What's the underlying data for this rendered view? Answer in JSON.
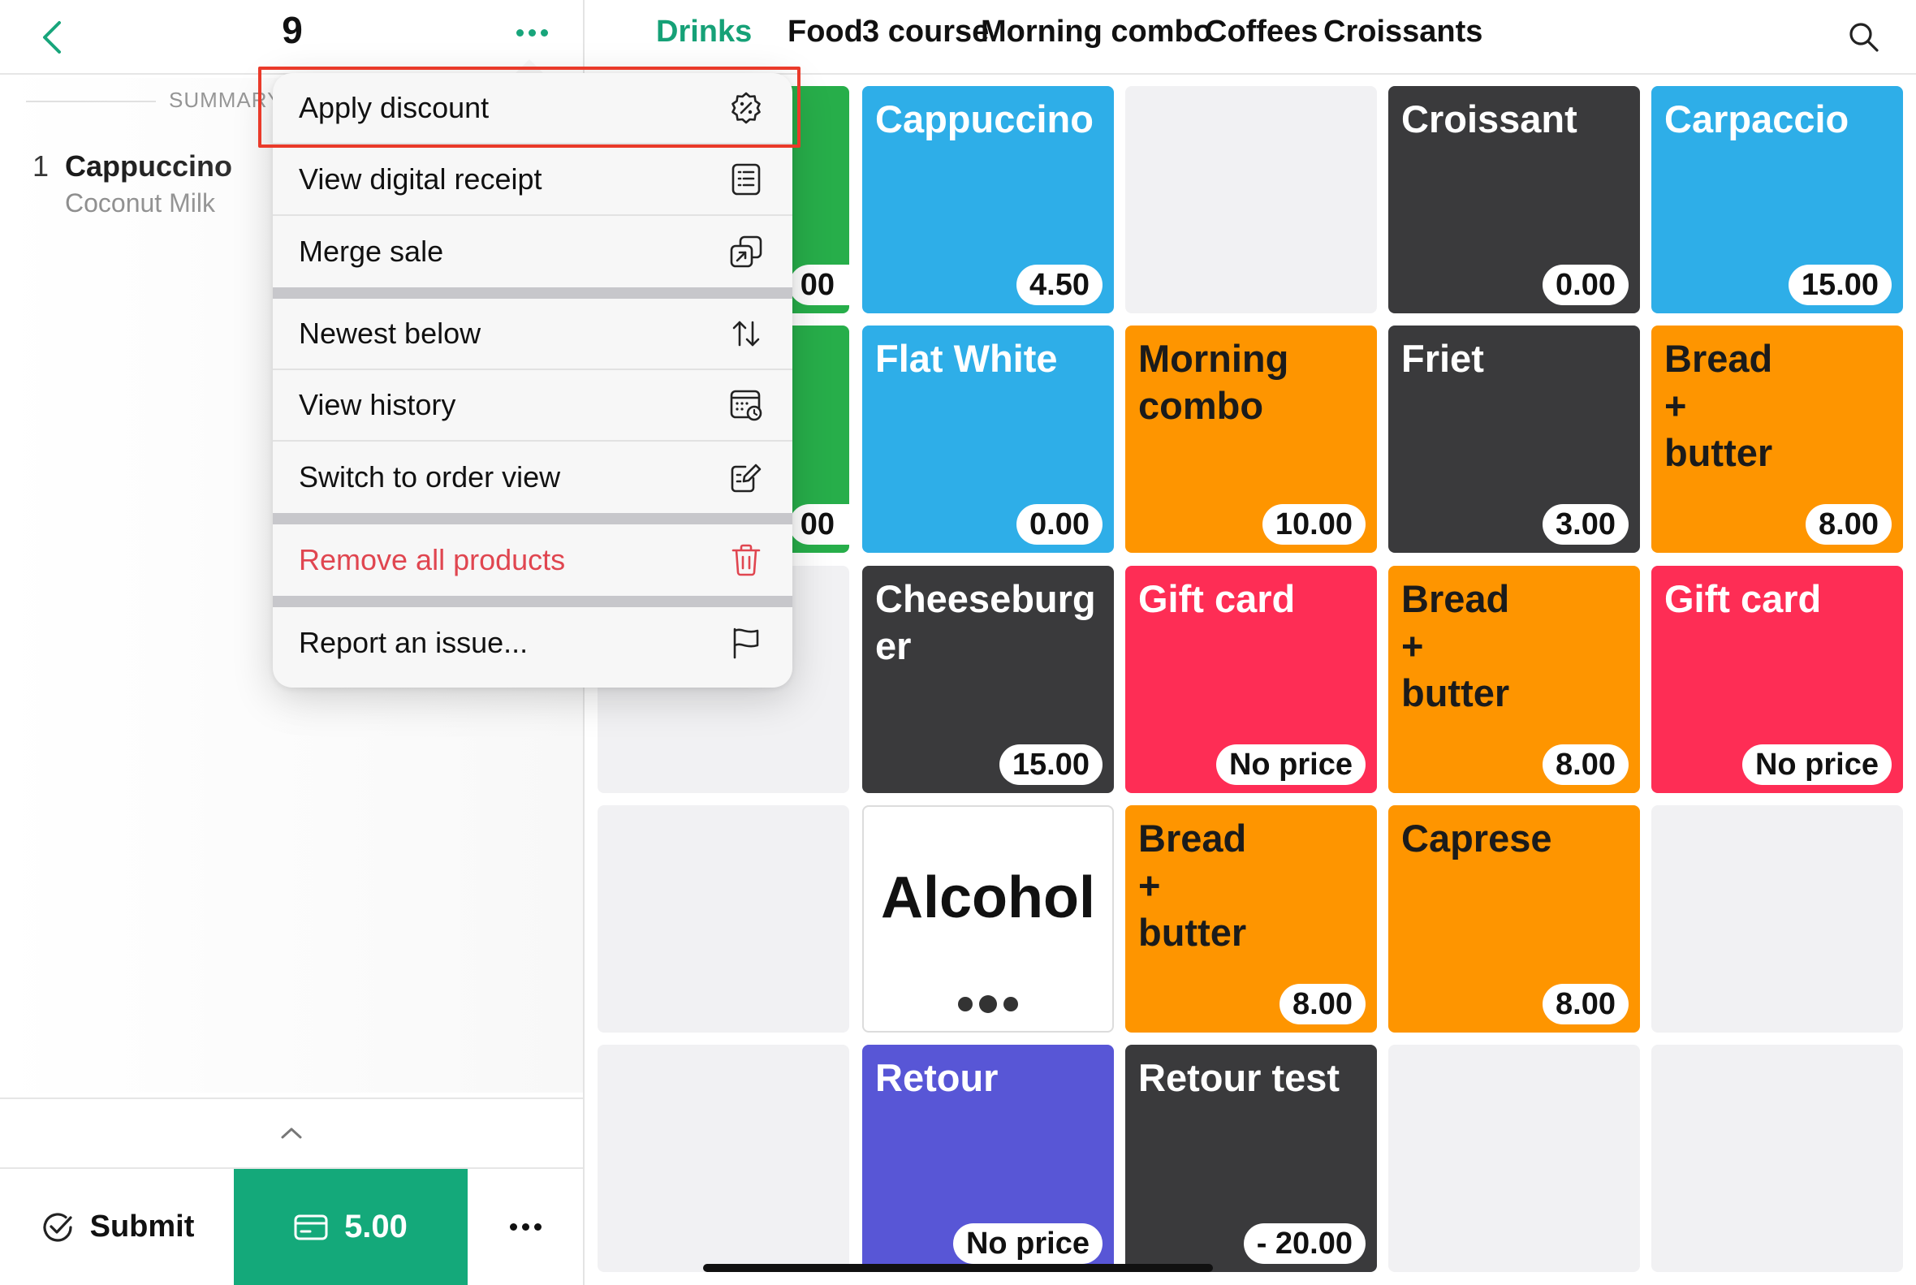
{
  "header": {
    "order_number": "9"
  },
  "summary": {
    "label": "SUMMARY"
  },
  "order_lines": [
    {
      "qty": "1",
      "name": "Cappuccino",
      "modifier": "Coconut Milk"
    }
  ],
  "footer": {
    "submit_label": "Submit",
    "pay_amount": "5.00"
  },
  "tabs": [
    {
      "label": "Drinks",
      "active": true
    },
    {
      "label": "Food"
    },
    {
      "label": "3 course"
    },
    {
      "label": "Morning combo"
    },
    {
      "label": "Coffees"
    },
    {
      "label": "Croissants"
    }
  ],
  "tiles": [
    {
      "name": "Cappuccino",
      "price": "4.50",
      "color": "#2eaee8"
    },
    {
      "name": "Croissant",
      "price": "0.00",
      "color": "#3a3a3c"
    },
    {
      "name": "Carpaccio",
      "price": "15.00",
      "color": "#2eaee8"
    },
    {
      "name": "Flat White",
      "price": "0.00",
      "color": "#2eaee8"
    },
    {
      "name": "Morning combo",
      "price": "10.00",
      "color": "#fe9500"
    },
    {
      "name": "Friet",
      "price": "3.00",
      "color": "#3a3a3c"
    },
    {
      "name": "Bread + butter",
      "price": "8.00",
      "color": "#fe9500"
    },
    {
      "name": "Cheeseburger",
      "price": "15.00",
      "color": "#3a3a3c"
    },
    {
      "name": "Gift card",
      "price": "No price",
      "color": "#fe2d55"
    },
    {
      "name": "Bread + butter",
      "price": "8.00",
      "color": "#fe9500"
    },
    {
      "name": "Gift card",
      "price": "No price",
      "color": "#fe2d55"
    },
    {
      "name": "Alcohol",
      "color": "#ffffff"
    },
    {
      "name": "Bread + butter",
      "price": "8.00",
      "color": "#fe9500"
    },
    {
      "name": "Caprese",
      "price": "8.00",
      "color": "#fe9500"
    },
    {
      "name": "Retour",
      "price": "No price",
      "color": "#5856d6"
    },
    {
      "name": "Retour test",
      "price": "- 20.00",
      "color": "#3a3a3c"
    }
  ],
  "partial_tiles": [
    {
      "price_fragment": "00",
      "color": "#27ae4a"
    },
    {
      "price_fragment": "00",
      "color": "#27ae4a"
    }
  ],
  "menu": {
    "items": [
      {
        "label": "Apply discount",
        "icon": "discount-badge-icon"
      },
      {
        "label": "View digital receipt",
        "icon": "receipt-icon"
      },
      {
        "label": "Merge sale",
        "icon": "merge-icon"
      },
      {
        "label": "Newest below",
        "icon": "sort-arrows-icon"
      },
      {
        "label": "View history",
        "icon": "history-calendar-icon"
      },
      {
        "label": "Switch to order view",
        "icon": "edit-note-icon"
      },
      {
        "label": "Remove all products",
        "icon": "trash-icon",
        "danger": true
      },
      {
        "label": "Report an issue...",
        "icon": "flag-icon"
      }
    ]
  },
  "colors": {
    "accent": "#14a97a",
    "danger": "#e04650",
    "highlight": "#ea3a2a"
  }
}
